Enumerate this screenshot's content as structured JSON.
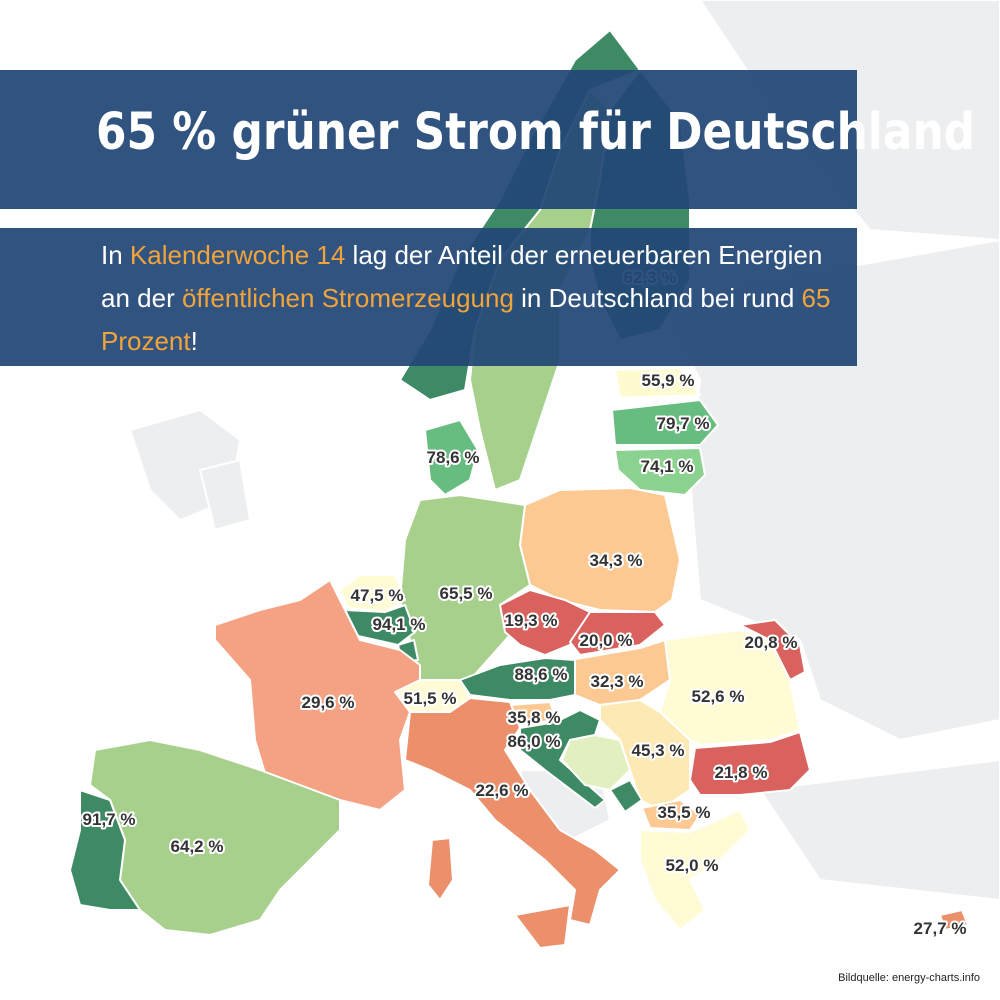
{
  "title": "65 % grüner Strom für Deutschland",
  "subtitle": {
    "p1": "In ",
    "h1": "Kalenderwoche 14",
    "p2": " lag der Anteil der erneuerbaren Energien an der ",
    "h2": "öffentlichen Stromerzeugung",
    "p3": " in Deutschland bei rund ",
    "h3": "65 Prozent",
    "p4": "!"
  },
  "source": "Bildquelle: energy-charts.info",
  "colors": {
    "banner": "#214675",
    "highlight": "#f2a33a",
    "background_land": "#eceef0"
  },
  "countries": [
    {
      "id": "norway",
      "label": "",
      "value": "",
      "color": "#3d8a64"
    },
    {
      "id": "sweden",
      "label": "",
      "value": "",
      "color": "#a8d08d"
    },
    {
      "id": "finland",
      "label": "62,3 %",
      "value": 62.3,
      "color": "#3d8a64"
    },
    {
      "id": "estonia",
      "label": "55,9 %",
      "value": 55.9,
      "color": "#fdfbcf"
    },
    {
      "id": "latvia",
      "label": "79,7 %",
      "value": 79.7,
      "color": "#66bd7f"
    },
    {
      "id": "lithuania",
      "label": "74,1 %",
      "value": 74.1,
      "color": "#8bd18f"
    },
    {
      "id": "denmark",
      "label": "78,6 %",
      "value": 78.6,
      "color": "#66bd7f"
    },
    {
      "id": "poland",
      "label": "34,3 %",
      "value": 34.3,
      "color": "#fdc992"
    },
    {
      "id": "germany",
      "label": "65,5 %",
      "value": 65.5,
      "color": "#a8d08d"
    },
    {
      "id": "netherlands",
      "label": "47,5 %",
      "value": 47.5,
      "color": "#fffbd5"
    },
    {
      "id": "belgium",
      "label": "94,1 %",
      "value": 94.1,
      "color": "#3d8a64"
    },
    {
      "id": "luxembourg",
      "label": "",
      "value": "",
      "color": "#3d8a64"
    },
    {
      "id": "czechia",
      "label": "19,3 %",
      "value": 19.3,
      "color": "#d9625e"
    },
    {
      "id": "slovakia",
      "label": "20,0 %",
      "value": 20.0,
      "color": "#d9625e"
    },
    {
      "id": "hungary",
      "label": "32,3 %",
      "value": 32.3,
      "color": "#fdc992"
    },
    {
      "id": "austria",
      "label": "88,6 %",
      "value": 88.6,
      "color": "#3d8a64"
    },
    {
      "id": "switzerland",
      "label": "51,5 %",
      "value": 51.5,
      "color": "#fffbd5"
    },
    {
      "id": "slovenia",
      "label": "35,8 %",
      "value": 35.8,
      "color": "#fdc992"
    },
    {
      "id": "croatia",
      "label": "86,0 %",
      "value": 86.0,
      "color": "#3d8a64"
    },
    {
      "id": "bosnia",
      "label": "",
      "value": "",
      "color": "#e2efc0"
    },
    {
      "id": "serbia",
      "label": "45,3 %",
      "value": 45.3,
      "color": "#fde9b4"
    },
    {
      "id": "montenegro",
      "label": "",
      "value": "",
      "color": "#3d8a64"
    },
    {
      "id": "north-macedonia",
      "label": "35,5 %",
      "value": 35.5,
      "color": "#fdc992"
    },
    {
      "id": "romania",
      "label": "52,6 %",
      "value": 52.6,
      "color": "#fffbd5"
    },
    {
      "id": "moldova",
      "label": "20,8 %",
      "value": 20.8,
      "color": "#d9625e"
    },
    {
      "id": "bulgaria",
      "label": "21,8 %",
      "value": 21.8,
      "color": "#d9625e"
    },
    {
      "id": "greece",
      "label": "52,0 %",
      "value": 52.0,
      "color": "#fffbd5"
    },
    {
      "id": "france",
      "label": "29,6 %",
      "value": 29.6,
      "color": "#f4a283"
    },
    {
      "id": "italy",
      "label": "22,6 %",
      "value": 22.6,
      "color": "#ec8f6b"
    },
    {
      "id": "spain",
      "label": "64,2 %",
      "value": 64.2,
      "color": "#a8d08d"
    },
    {
      "id": "portugal",
      "label": "91,7 %",
      "value": 91.7,
      "color": "#3d8a64"
    },
    {
      "id": "cyprus",
      "label": "27,7 %",
      "value": 27.7,
      "color": "#ec8f6b"
    }
  ]
}
